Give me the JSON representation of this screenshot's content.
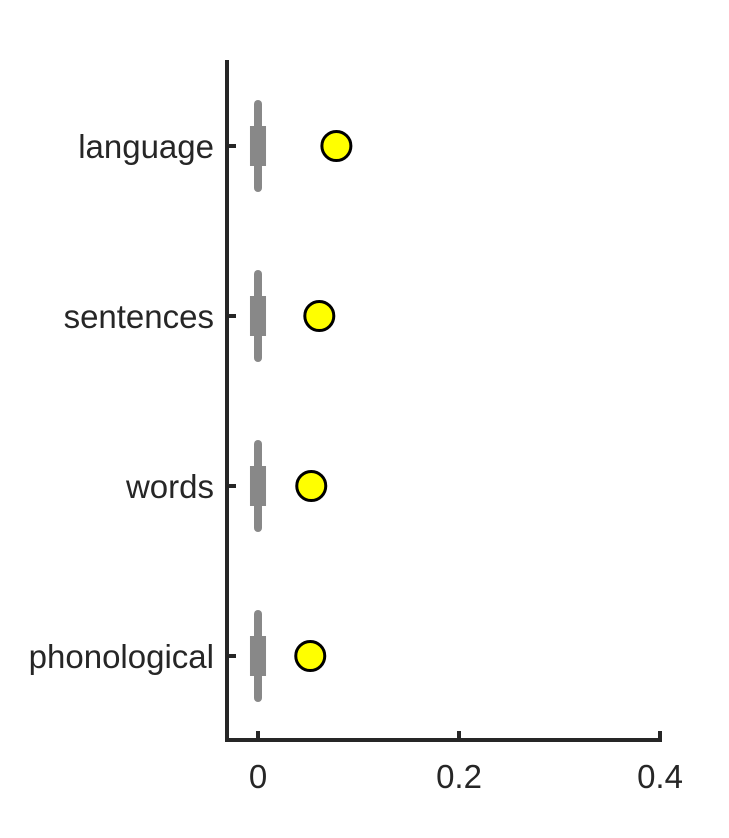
{
  "chart_data": {
    "type": "scatter",
    "title": "",
    "xlabel": "",
    "ylabel": "",
    "categories": [
      "language",
      "sentences",
      "words",
      "phonological"
    ],
    "xlim": [
      -0.03,
      0.4
    ],
    "xticks": [
      0,
      0.2,
      0.4
    ],
    "xtick_labels": [
      "0",
      "0.2",
      "0.4"
    ],
    "grid": false,
    "series": [
      {
        "values": [
          0.078,
          0.061,
          0.053,
          0.052
        ],
        "color": "#ffff00",
        "edge_color": "#000000"
      }
    ],
    "null_distribution": {
      "color": "#888888",
      "whisker_low": [
        -0.003,
        -0.003,
        -0.003,
        -0.003
      ],
      "whisker_high": [
        0.003,
        0.003,
        0.003,
        0.003
      ],
      "box_low": [
        -0.006,
        -0.006,
        -0.006,
        -0.006
      ],
      "box_high": [
        0.006,
        0.006,
        0.006,
        0.006
      ]
    }
  }
}
